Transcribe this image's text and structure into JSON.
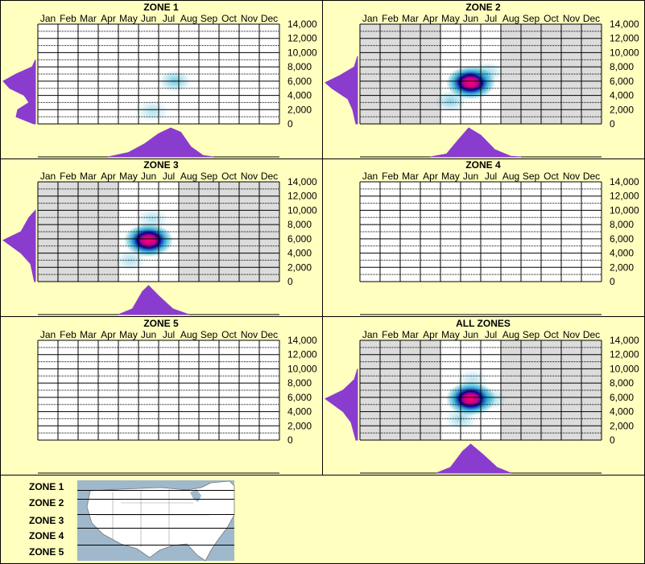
{
  "chart_data": [
    {
      "type": "heatmap",
      "title": "ZONE 1",
      "months": [
        "Jan",
        "Feb",
        "Mar",
        "Apr",
        "May",
        "Jun",
        "Jul",
        "Aug",
        "Sep",
        "Oct",
        "Nov",
        "Dec"
      ],
      "y_ticks": [
        "14,000",
        "12,000",
        "10,000",
        "8,000",
        "6,000",
        "4,000",
        "2,000",
        "0"
      ],
      "ylim": [
        0,
        14000
      ],
      "active_months": [],
      "hotspots": [
        {
          "month": 7.3,
          "elevation": 6000,
          "intensity": 0.35
        },
        {
          "month": 6.2,
          "elevation": 1800,
          "intensity": 0.2
        }
      ],
      "elevation_profile": [
        {
          "elevation": 0,
          "density": 0.05
        },
        {
          "elevation": 1000,
          "density": 0.6
        },
        {
          "elevation": 2000,
          "density": 0.55
        },
        {
          "elevation": 3000,
          "density": 0.2
        },
        {
          "elevation": 4000,
          "density": 0.35
        },
        {
          "elevation": 5000,
          "density": 0.8
        },
        {
          "elevation": 6000,
          "density": 1.0
        },
        {
          "elevation": 7000,
          "density": 0.6
        },
        {
          "elevation": 8000,
          "density": 0.1
        },
        {
          "elevation": 9000,
          "density": 0.0
        }
      ],
      "month_profile": [
        {
          "month": 4.0,
          "density": 0.0
        },
        {
          "month": 5.0,
          "density": 0.15
        },
        {
          "month": 5.8,
          "density": 0.45
        },
        {
          "month": 6.5,
          "density": 0.8
        },
        {
          "month": 7.1,
          "density": 1.0
        },
        {
          "month": 7.6,
          "density": 0.85
        },
        {
          "month": 8.1,
          "density": 0.35
        },
        {
          "month": 8.7,
          "density": 0.05
        },
        {
          "month": 9.2,
          "density": 0.0
        }
      ]
    },
    {
      "type": "heatmap",
      "title": "ZONE 2",
      "months": [
        "Jan",
        "Feb",
        "Mar",
        "Apr",
        "May",
        "Jun",
        "Jul",
        "Aug",
        "Sep",
        "Oct",
        "Nov",
        "Dec"
      ],
      "y_ticks": [
        "14,000",
        "12,000",
        "10,000",
        "8,000",
        "6,000",
        "4,000",
        "2,000",
        "0"
      ],
      "ylim": [
        0,
        14000
      ],
      "active_months": [
        5,
        6,
        7
      ],
      "hotspots": [
        {
          "month": 6.0,
          "elevation": 5800,
          "intensity": 1.0
        },
        {
          "month": 5.0,
          "elevation": 3200,
          "intensity": 0.3
        },
        {
          "month": 6.8,
          "elevation": 7200,
          "intensity": 0.25
        }
      ],
      "elevation_profile": [
        {
          "elevation": 0,
          "density": 0.05
        },
        {
          "elevation": 2000,
          "density": 0.15
        },
        {
          "elevation": 3500,
          "density": 0.3
        },
        {
          "elevation": 5000,
          "density": 0.8
        },
        {
          "elevation": 5800,
          "density": 1.0
        },
        {
          "elevation": 6800,
          "density": 0.55
        },
        {
          "elevation": 8000,
          "density": 0.1
        },
        {
          "elevation": 9500,
          "density": 0.0
        }
      ],
      "month_profile": [
        {
          "month": 4.0,
          "density": 0.0
        },
        {
          "month": 4.8,
          "density": 0.1
        },
        {
          "month": 5.4,
          "density": 0.6
        },
        {
          "month": 5.9,
          "density": 1.0
        },
        {
          "month": 6.5,
          "density": 0.75
        },
        {
          "month": 7.2,
          "density": 0.25
        },
        {
          "month": 8.0,
          "density": 0.02
        },
        {
          "month": 8.5,
          "density": 0.0
        }
      ]
    },
    {
      "type": "heatmap",
      "title": "ZONE 3",
      "months": [
        "Jan",
        "Feb",
        "Mar",
        "Apr",
        "May",
        "Jun",
        "Jul",
        "Aug",
        "Sep",
        "Oct",
        "Nov",
        "Dec"
      ],
      "y_ticks": [
        "14,000",
        "12,000",
        "10,000",
        "8,000",
        "6,000",
        "4,000",
        "2,000",
        "0"
      ],
      "ylim": [
        0,
        14000
      ],
      "active_months": [
        5,
        6,
        7
      ],
      "hotspots": [
        {
          "month": 6.0,
          "elevation": 5800,
          "intensity": 1.0
        },
        {
          "month": 6.2,
          "elevation": 8800,
          "intensity": 0.2
        },
        {
          "month": 5.1,
          "elevation": 3000,
          "intensity": 0.2
        }
      ],
      "elevation_profile": [
        {
          "elevation": 0,
          "density": 0.03
        },
        {
          "elevation": 2500,
          "density": 0.15
        },
        {
          "elevation": 4000,
          "density": 0.45
        },
        {
          "elevation": 5800,
          "density": 1.0
        },
        {
          "elevation": 7000,
          "density": 0.45
        },
        {
          "elevation": 9000,
          "density": 0.2
        },
        {
          "elevation": 10000,
          "density": 0.0
        }
      ],
      "month_profile": [
        {
          "month": 4.5,
          "density": 0.0
        },
        {
          "month": 5.2,
          "density": 0.2
        },
        {
          "month": 5.7,
          "density": 0.8
        },
        {
          "month": 6.0,
          "density": 1.0
        },
        {
          "month": 6.5,
          "density": 0.65
        },
        {
          "month": 7.2,
          "density": 0.2
        },
        {
          "month": 8.0,
          "density": 0.0
        }
      ]
    },
    {
      "type": "heatmap",
      "title": "ZONE 4",
      "months": [
        "Jan",
        "Feb",
        "Mar",
        "Apr",
        "May",
        "Jun",
        "Jul",
        "Aug",
        "Sep",
        "Oct",
        "Nov",
        "Dec"
      ],
      "y_ticks": [
        "14,000",
        "12,000",
        "10,000",
        "8,000",
        "6,000",
        "4,000",
        "2,000",
        "0"
      ],
      "ylim": [
        0,
        14000
      ],
      "active_months": [],
      "hotspots": [],
      "elevation_profile": [],
      "month_profile": []
    },
    {
      "type": "heatmap",
      "title": "ZONE 5",
      "months": [
        "Jan",
        "Feb",
        "Mar",
        "Apr",
        "May",
        "Jun",
        "Jul",
        "Aug",
        "Sep",
        "Oct",
        "Nov",
        "Dec"
      ],
      "y_ticks": [
        "14,000",
        "12,000",
        "10,000",
        "8,000",
        "6,000",
        "4,000",
        "2,000",
        "0"
      ],
      "ylim": [
        0,
        14000
      ],
      "active_months": [],
      "hotspots": [],
      "elevation_profile": [],
      "month_profile": []
    },
    {
      "type": "heatmap",
      "title": "ALL ZONES",
      "months": [
        "Jan",
        "Feb",
        "Mar",
        "Apr",
        "May",
        "Jun",
        "Jul",
        "Aug",
        "Sep",
        "Oct",
        "Nov",
        "Dec"
      ],
      "y_ticks": [
        "14,000",
        "12,000",
        "10,000",
        "8,000",
        "6,000",
        "4,000",
        "2,000",
        "0"
      ],
      "ylim": [
        0,
        14000
      ],
      "active_months": [
        5,
        6,
        7
      ],
      "hotspots": [
        {
          "month": 6.0,
          "elevation": 5800,
          "intensity": 1.0
        },
        {
          "month": 5.5,
          "elevation": 3000,
          "intensity": 0.25
        },
        {
          "month": 6.1,
          "elevation": 8500,
          "intensity": 0.18
        },
        {
          "month": 7.0,
          "elevation": 5800,
          "intensity": 0.25
        }
      ],
      "elevation_profile": [
        {
          "elevation": 0,
          "density": 0.05
        },
        {
          "elevation": 2500,
          "density": 0.2
        },
        {
          "elevation": 4000,
          "density": 0.45
        },
        {
          "elevation": 5800,
          "density": 1.0
        },
        {
          "elevation": 7000,
          "density": 0.45
        },
        {
          "elevation": 8500,
          "density": 0.1
        },
        {
          "elevation": 10000,
          "density": 0.0
        }
      ],
      "month_profile": [
        {
          "month": 4.3,
          "density": 0.0
        },
        {
          "month": 5.0,
          "density": 0.2
        },
        {
          "month": 5.6,
          "density": 0.75
        },
        {
          "month": 6.0,
          "density": 1.0
        },
        {
          "month": 6.6,
          "density": 0.65
        },
        {
          "month": 7.3,
          "density": 0.2
        },
        {
          "month": 8.0,
          "density": 0.0
        }
      ]
    }
  ],
  "zone_legend": {
    "labels": [
      "ZONE 1",
      "ZONE 2",
      "ZONE 3",
      "ZONE 4",
      "ZONE 5"
    ]
  },
  "colors": {
    "background": "#ffffc0",
    "plot_bg": "#ffffff",
    "inactive_month": "#dcdcdc",
    "profile_fill": "#8a3ccf",
    "heat_low": "#00a0c8",
    "heat_mid": "#0000a0",
    "heat_high": "#ff0080",
    "map_water": "#9fb8cc",
    "map_land": "#ffffff"
  }
}
